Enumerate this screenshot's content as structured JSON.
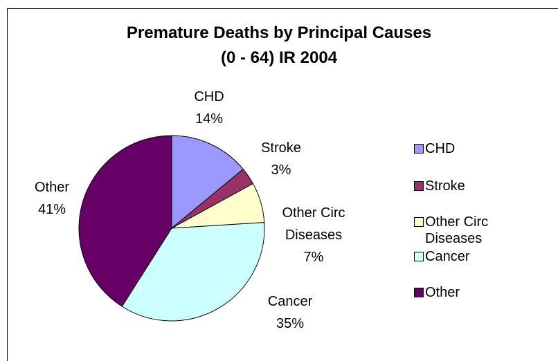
{
  "chart_data": {
    "type": "pie",
    "title": [
      "Premature Deaths by Principal Causes",
      "(0 - 64) IR 2004"
    ],
    "categories": [
      "CHD",
      "Stroke",
      "Other Circ Diseases",
      "Cancer",
      "Other"
    ],
    "values": [
      14,
      3,
      7,
      35,
      41
    ],
    "value_labels": [
      "14%",
      "3%",
      "7%",
      "35%",
      "41%"
    ],
    "colors": [
      "#9999ff",
      "#993366",
      "#ffffcc",
      "#ccffff",
      "#660066"
    ],
    "legend": "right"
  }
}
